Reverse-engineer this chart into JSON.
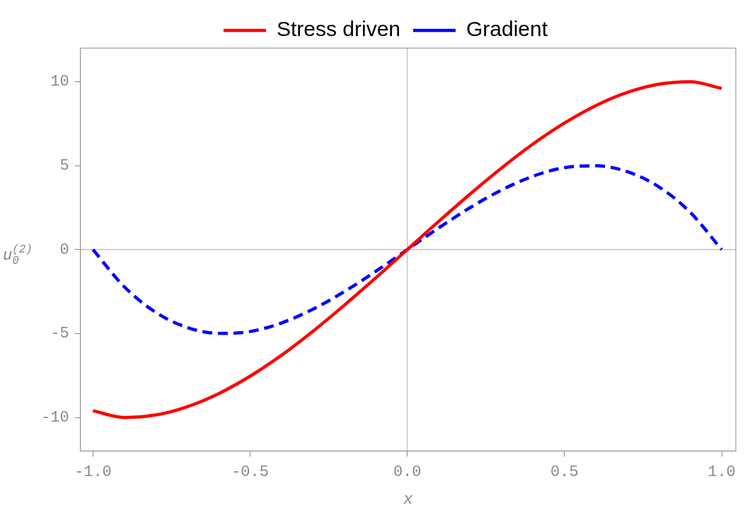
{
  "chart_data": {
    "type": "line",
    "xlabel": "x",
    "ylabel": "u$_{0}$$^{(2)}$",
    "x": [
      -1,
      -0.9,
      -0.8,
      -0.7,
      -0.6,
      -0.5,
      -0.4,
      -0.3,
      -0.2,
      -0.1,
      0,
      0.1,
      0.2,
      0.3,
      0.4,
      0.5,
      0.6,
      0.7,
      0.8,
      0.9,
      1
    ],
    "series": [
      {
        "name": "Stress driven",
        "color": "#ff0000",
        "line_style": "solid",
        "values": [
          -9.6,
          -10,
          -9.85,
          -9.36,
          -8.58,
          -7.54,
          -6.29,
          -4.86,
          -3.31,
          -1.68,
          0,
          1.68,
          3.31,
          4.86,
          6.29,
          7.54,
          8.58,
          9.36,
          9.85,
          10,
          9.6
        ]
      },
      {
        "name": "Gradient",
        "color": "#0000ff",
        "line_style": "dashed",
        "values": [
          0,
          -2.22,
          -3.74,
          -4.64,
          -4.99,
          -4.88,
          -4.37,
          -3.55,
          -2.5,
          -1.29,
          0,
          1.29,
          2.5,
          3.55,
          4.37,
          4.88,
          4.99,
          4.64,
          3.74,
          2.22,
          0
        ]
      }
    ],
    "xlim": [
      -1.04,
      1.045
    ],
    "ylim": [
      -12,
      12
    ],
    "xticks": [
      {
        "value": -1,
        "label": "-1.0"
      },
      -0.5,
      {
        "value": 0,
        "label": "0.0"
      },
      0.5,
      {
        "value": 1,
        "label": "1.0"
      }
    ],
    "yticks": [
      -10,
      -5,
      0,
      5,
      10
    ],
    "ref_lines": [
      {
        "axis": "x",
        "value": 0,
        "color": "#b0b0b0"
      },
      {
        "axis": "y",
        "value": 0,
        "color": "#a4a4a4"
      }
    ],
    "grid": false,
    "legend": "top",
    "marker": "none"
  }
}
